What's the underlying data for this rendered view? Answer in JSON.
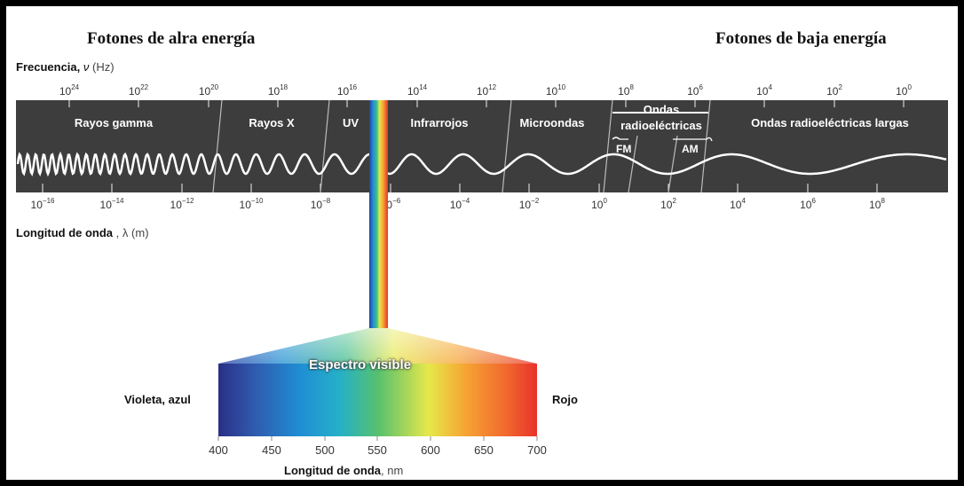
{
  "header": {
    "left": "Fotones de alra energía",
    "right": "Fotones de baja energía"
  },
  "frequency_axis": {
    "label": "Frecuencia,",
    "symbol": "ν",
    "unit": "(Hz)",
    "ticks": [
      "24",
      "22",
      "20",
      "18",
      "16",
      "14",
      "12",
      "10",
      "8",
      "6",
      "4",
      "2",
      "0"
    ]
  },
  "wavelength_axis": {
    "label": "Longitud de onda",
    "symbol": ", λ",
    "unit": "(m)",
    "ticks": [
      "−16",
      "−14",
      "−12",
      "−10",
      "−8",
      "−6",
      "−4",
      "−2",
      "0",
      "2",
      "4",
      "6",
      "8"
    ]
  },
  "regions": {
    "gamma": "Rayos gamma",
    "xray": "Rayos X",
    "uv": "UV",
    "ir": "Infrarrojos",
    "micro": "Microondas",
    "radio_line1": "Ondas",
    "radio_line2": "radioeléctricas",
    "fm": "FM",
    "am": "AM",
    "long_radio": "Ondas radioeléctricas largas"
  },
  "visible": {
    "title": "Espectro visible",
    "left_label": "Violeta, azul",
    "right_label": "Rojo",
    "ticks": [
      "400",
      "450",
      "500",
      "550",
      "600",
      "650",
      "700"
    ],
    "axis_label": "Longitud de onda",
    "axis_unit": ", nm"
  },
  "colors": {
    "band": "#3d3d3d",
    "visible_gradient": [
      "#2a2f86",
      "#2f5db0",
      "#1f8fd4",
      "#25b0c8",
      "#56c06f",
      "#e7e84a",
      "#f6a233",
      "#f16a2e",
      "#e8332a"
    ]
  }
}
